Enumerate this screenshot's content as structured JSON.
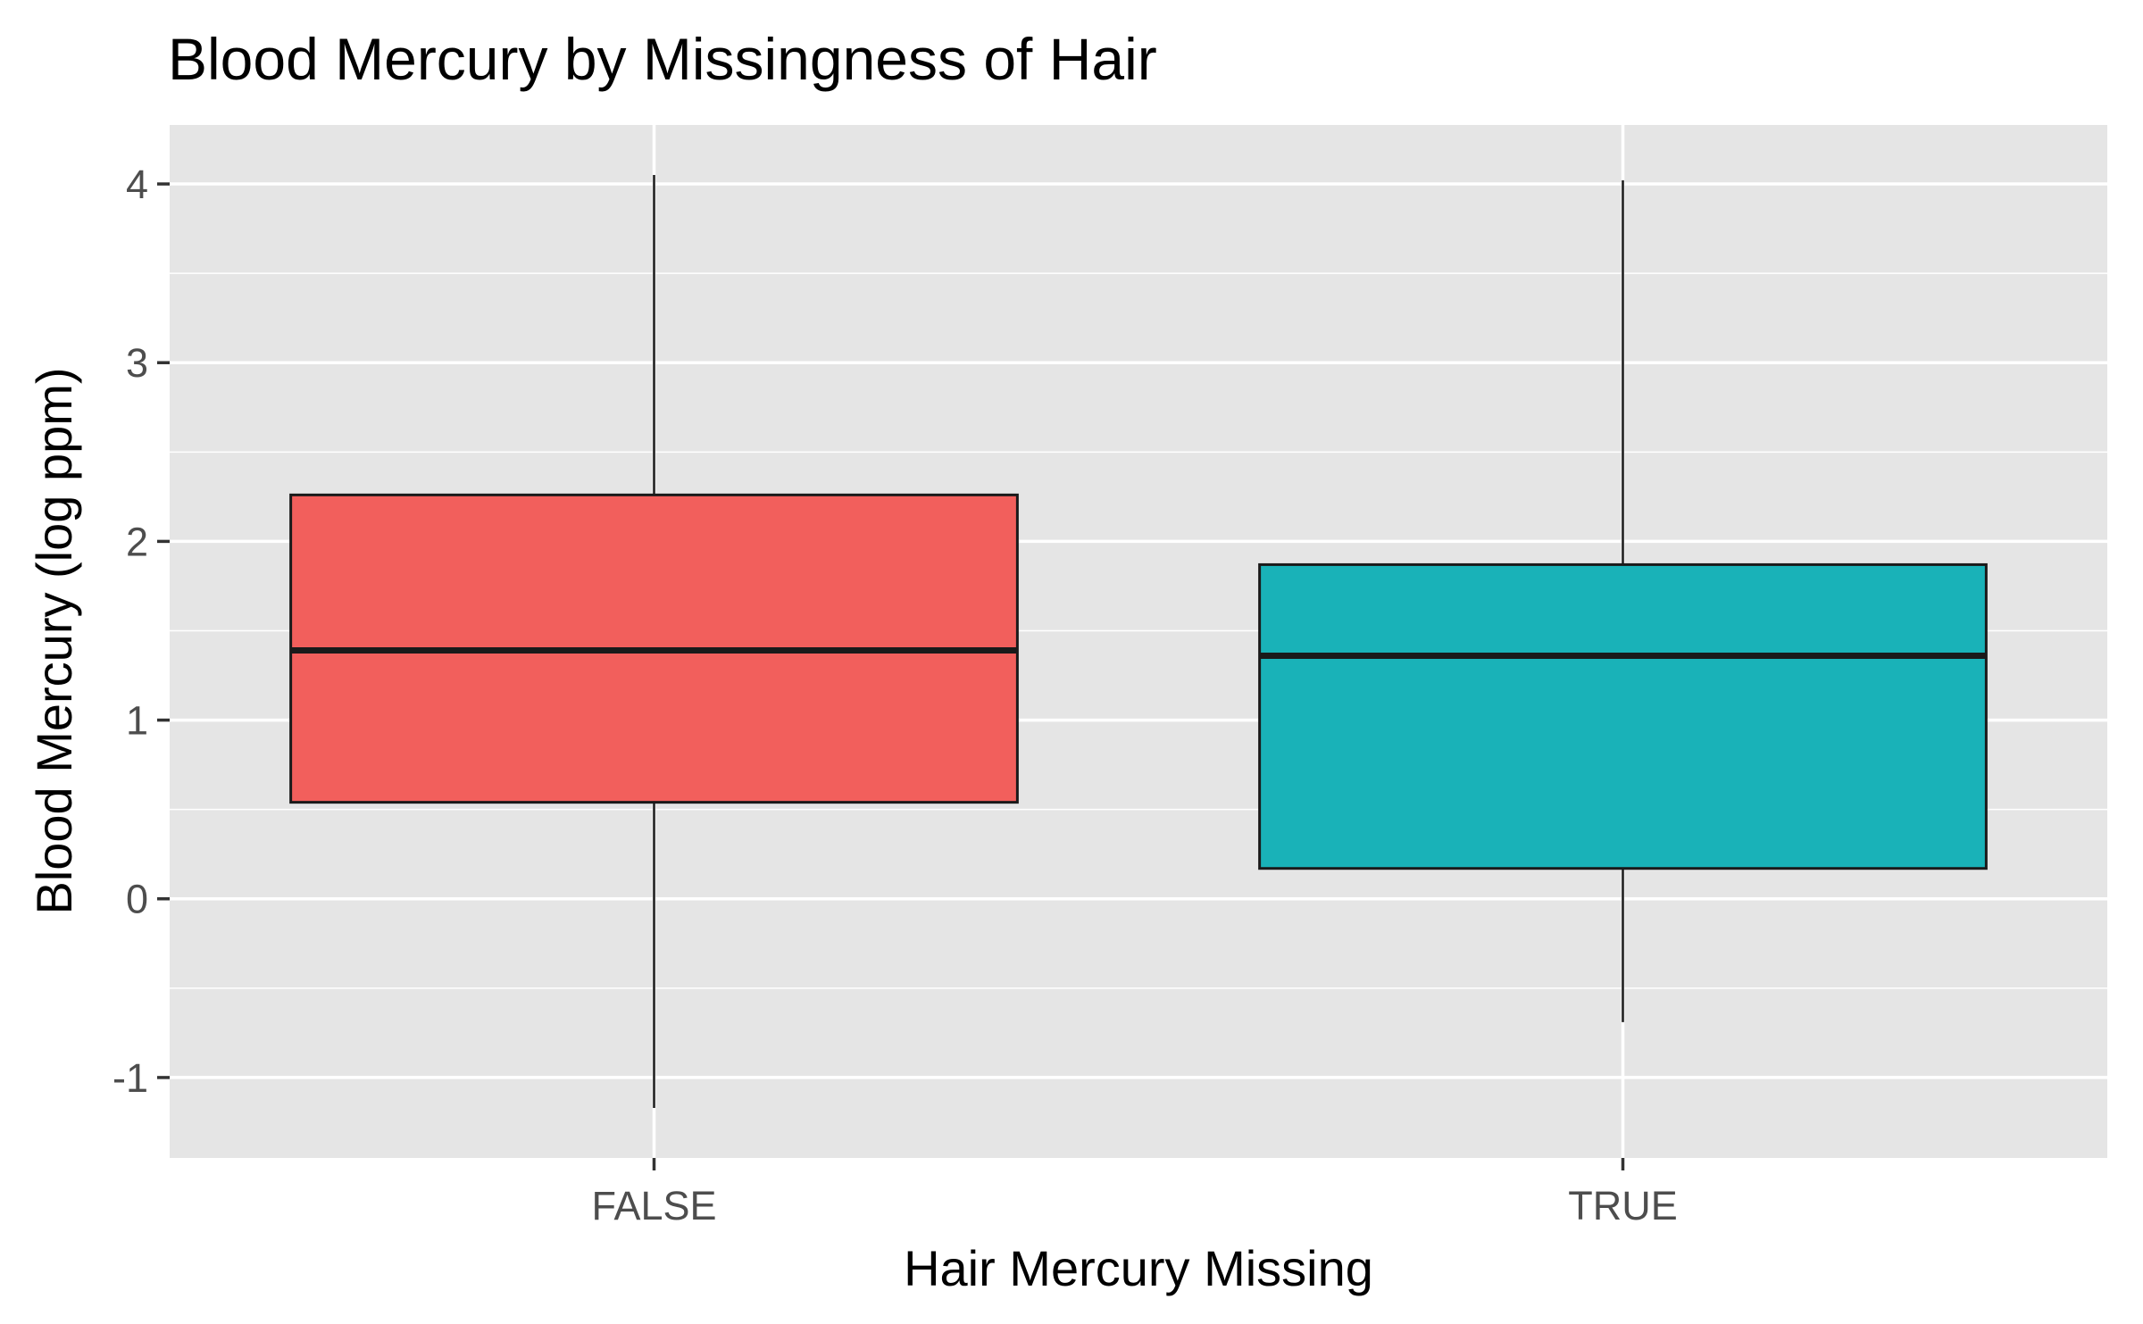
{
  "chart_data": {
    "type": "box",
    "title": "Blood Mercury by Missingness of Hair",
    "xlabel": "Hair Mercury Missing",
    "ylabel": "Blood Mercury (log ppm)",
    "categories": [
      "FALSE",
      "TRUE"
    ],
    "y_ticks": [
      -1,
      0,
      1,
      2,
      3,
      4
    ],
    "y_tick_labels": [
      "-1",
      "0",
      "1",
      "2",
      "3",
      "4"
    ],
    "ylim": [
      -1.45,
      4.33
    ],
    "grid": true,
    "legend": "none",
    "boxes": [
      {
        "category": "FALSE",
        "whisker_low": -1.17,
        "q1": 0.54,
        "median": 1.39,
        "q3": 2.26,
        "whisker_high": 4.05,
        "fill": "#F25F5C"
      },
      {
        "category": "TRUE",
        "whisker_low": -0.69,
        "q1": 0.17,
        "median": 1.36,
        "q3": 1.87,
        "whisker_high": 4.02,
        "fill": "#19B2B8"
      }
    ],
    "colors": {
      "panel": "#E5E5E5",
      "grid": "#FFFFFF",
      "outline": "#1a1a1a"
    }
  }
}
